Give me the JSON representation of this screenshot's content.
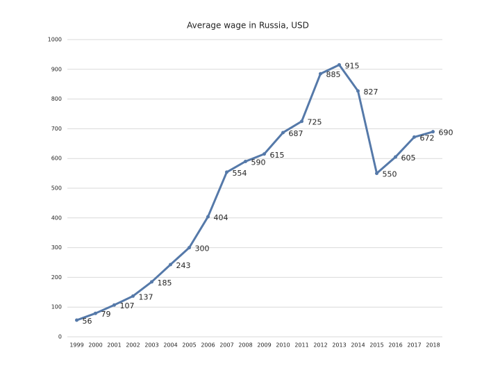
{
  "chart_data": {
    "type": "line",
    "title": "Average wage in Russia, USD",
    "categories": [
      "1999",
      "2000",
      "2001",
      "2002",
      "2003",
      "2004",
      "2005",
      "2006",
      "2007",
      "2008",
      "2009",
      "2010",
      "2011",
      "2012",
      "2013",
      "2014",
      "2015",
      "2016",
      "2017",
      "2018"
    ],
    "values": [
      56,
      79,
      107,
      137,
      185,
      243,
      300,
      404,
      554,
      590,
      615,
      687,
      725,
      885,
      915,
      827,
      550,
      605,
      672,
      690
    ],
    "color": "#5579a9",
    "ylim": [
      0,
      1000
    ],
    "yticks": [
      0,
      100,
      200,
      300,
      400,
      500,
      600,
      700,
      800,
      900,
      1000
    ],
    "grid": true
  }
}
